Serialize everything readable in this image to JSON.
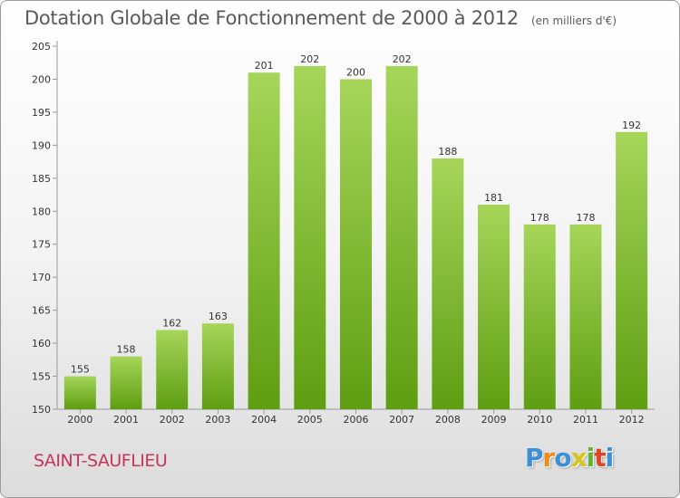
{
  "chart_data": {
    "type": "bar",
    "title": "Dotation Globale de Fonctionnement de 2000 à 2012",
    "subtitle": "(en milliers d'€)",
    "xlabel": "",
    "ylabel": "",
    "categories": [
      "2000",
      "2001",
      "2002",
      "2003",
      "2004",
      "2005",
      "2006",
      "2007",
      "2008",
      "2009",
      "2010",
      "2011",
      "2012"
    ],
    "values": [
      155,
      158,
      162,
      163,
      201,
      202,
      200,
      202,
      188,
      181,
      178,
      178,
      192
    ],
    "ylim": [
      150,
      205
    ],
    "yticks": [
      150,
      155,
      160,
      165,
      170,
      175,
      180,
      185,
      190,
      195,
      200,
      205
    ],
    "grid": false,
    "bar_color_top": "#a6d55a",
    "bar_color_bottom": "#5e9e12"
  },
  "footer": {
    "commune": "SAINT-SAUFLIEU",
    "commune_color": "#c8345a"
  },
  "logo": {
    "letters": [
      "P",
      "r",
      "o",
      "x",
      "i",
      "t",
      "i"
    ],
    "colors": [
      "#3d8fd6",
      "#f08a1c",
      "#3d8fd6",
      "#d8c51a",
      "#5fb52e",
      "#e0452a",
      "#3d8fd6"
    ]
  }
}
